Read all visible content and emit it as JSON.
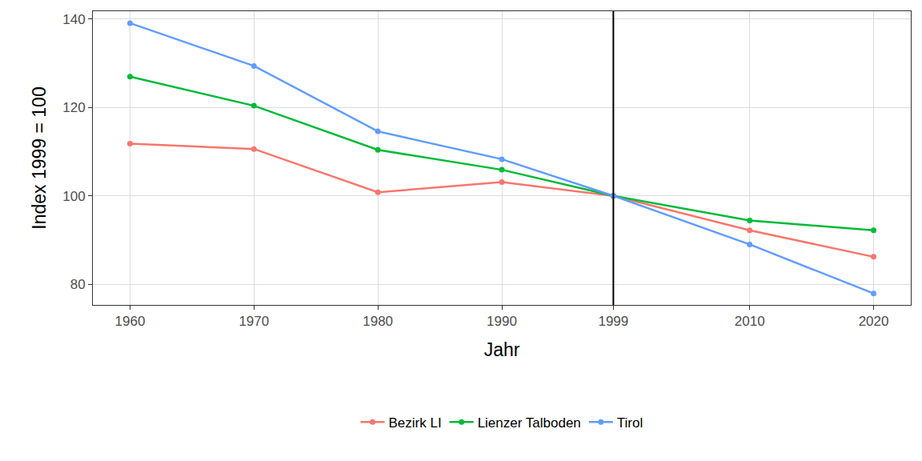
{
  "chart_data": {
    "type": "line",
    "x_label": "Jahr",
    "y_label": "Index 1999 = 100",
    "x": [
      1960,
      1970,
      1980,
      1990,
      1999,
      2010,
      2020
    ],
    "series": [
      {
        "name": "Bezirk LI",
        "color": "#F8766D",
        "marker": "circle",
        "values": [
          111.8,
          110.6,
          100.8,
          103.1,
          100,
          92.2,
          86.2
        ]
      },
      {
        "name": "Lienzer Talboden",
        "color": "#00BA38",
        "marker": "circle",
        "values": [
          127.0,
          120.4,
          110.4,
          105.9,
          100,
          94.4,
          92.2
        ]
      },
      {
        "name": "Tirol",
        "color": "#619CFF",
        "marker": "circle",
        "values": [
          139.1,
          129.4,
          114.6,
          108.3,
          100,
          89.0,
          77.9
        ]
      }
    ],
    "xlim": [
      1957,
      2023
    ],
    "xticks": [
      1960,
      1970,
      1980,
      1990,
      1999,
      2010,
      2020
    ],
    "ylim": [
      75.3,
      141.8
    ],
    "yticks": [
      80,
      100,
      120,
      140
    ],
    "reference_line": {
      "x": 1999,
      "color": "#000000"
    },
    "grid": true,
    "legend": "bottom"
  }
}
